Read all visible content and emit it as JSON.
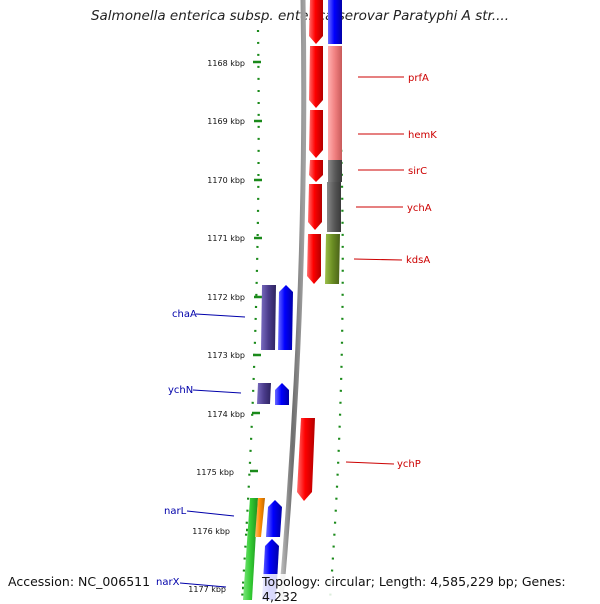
{
  "title": "Salmonella enterica subsp. enterica serovar Paratyphi A str....",
  "footer": {
    "accession": "Accession: NC_006511",
    "info": "Topology: circular; Length: 4,585,229 bp; Genes: 4,232"
  },
  "colors": {
    "backbone": "#8a8a8a",
    "tick": "#1a8a1a",
    "red_feature": "#ff0000",
    "blue_feature": "#0000ff",
    "purple_feature": "#4b3c8c",
    "pink_feature": "#f08080",
    "gray_feature": "#5a5a5a",
    "olive_feature": "#6b8e23",
    "green_feature": "#33cc33",
    "orange_feature": "#ff8c00",
    "red_label": "#cc0000",
    "blue_label": "#0000aa"
  },
  "scale_unit": "kbp",
  "ticks": [
    {
      "label": "1168 kbp",
      "kbp": 1168
    },
    {
      "label": "1169 kbp",
      "kbp": 1169
    },
    {
      "label": "1170 kbp",
      "kbp": 1170
    },
    {
      "label": "1171 kbp",
      "kbp": 1171
    },
    {
      "label": "1172 kbp",
      "kbp": 1172
    },
    {
      "label": "1173 kbp",
      "kbp": 1173
    },
    {
      "label": "1174 kbp",
      "kbp": 1174
    },
    {
      "label": "1175 kbp",
      "kbp": 1175
    },
    {
      "label": "1176 kbp",
      "kbp": 1176
    },
    {
      "label": "1177 kbp",
      "kbp": 1177
    }
  ],
  "genes": [
    {
      "name": "prfA",
      "strand": "reverse"
    },
    {
      "name": "hemK",
      "strand": "reverse"
    },
    {
      "name": "sirC",
      "strand": "reverse"
    },
    {
      "name": "ychA",
      "strand": "reverse"
    },
    {
      "name": "kdsA",
      "strand": "reverse"
    },
    {
      "name": "chaA",
      "strand": "forward"
    },
    {
      "name": "ychN",
      "strand": "forward"
    },
    {
      "name": "ychP",
      "strand": "reverse"
    },
    {
      "name": "narL",
      "strand": "forward"
    },
    {
      "name": "narX",
      "strand": "forward"
    }
  ]
}
